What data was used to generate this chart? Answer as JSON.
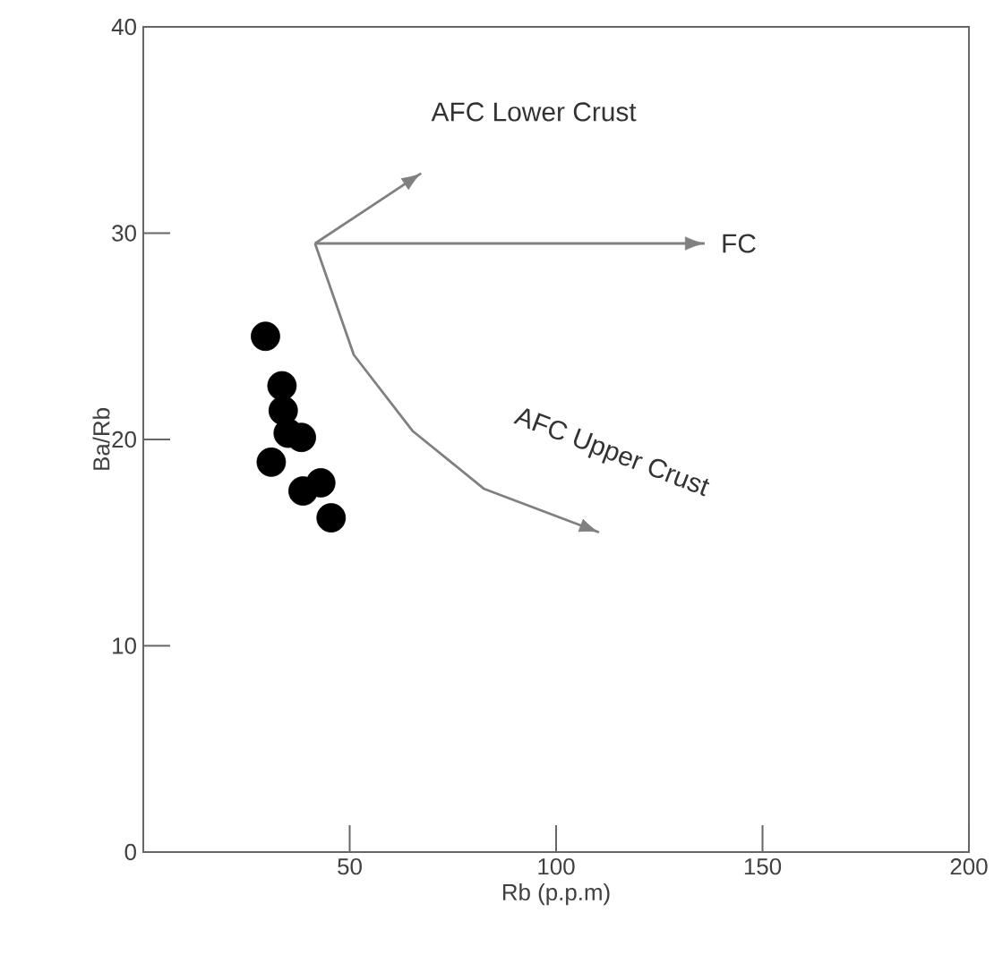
{
  "chart_data": {
    "type": "scatter",
    "xlabel": "Rb (p.p.m)",
    "ylabel": "Ba/Rb",
    "xlim": [
      0,
      200
    ],
    "ylim": [
      0,
      40
    ],
    "xticks": [
      50,
      100,
      150,
      200
    ],
    "yticks": [
      0,
      10,
      20,
      30,
      40
    ],
    "grid": false,
    "series": [
      {
        "color": "#000000",
        "marker": "circle",
        "x": [
          29.6,
          33.6,
          33.9,
          35.1,
          38.3,
          31.0,
          38.7,
          43.0,
          45.5
        ],
        "values": [
          25.0,
          22.6,
          21.4,
          20.3,
          20.1,
          18.9,
          17.5,
          17.9,
          16.2
        ]
      },
      {
        "type": "line",
        "color": "#808080",
        "marker": "none",
        "x": [
          41.6,
          67.3
        ],
        "values": [
          29.5,
          32.9
        ]
      },
      {
        "type": "line",
        "color": "#808080",
        "marker": "none",
        "x": [
          41.6,
          136
        ],
        "values": [
          29.5,
          29.5
        ]
      },
      {
        "type": "line",
        "color": "#808080",
        "marker": "none",
        "x": [
          41.6,
          51,
          65.3,
          82.6,
          110.4
        ],
        "values": [
          29.5,
          24.1,
          20.4,
          17.6,
          15.5
        ]
      }
    ],
    "annotations": [
      "AFC Lower Crust",
      "FC",
      "AFC Upper Crust"
    ]
  }
}
